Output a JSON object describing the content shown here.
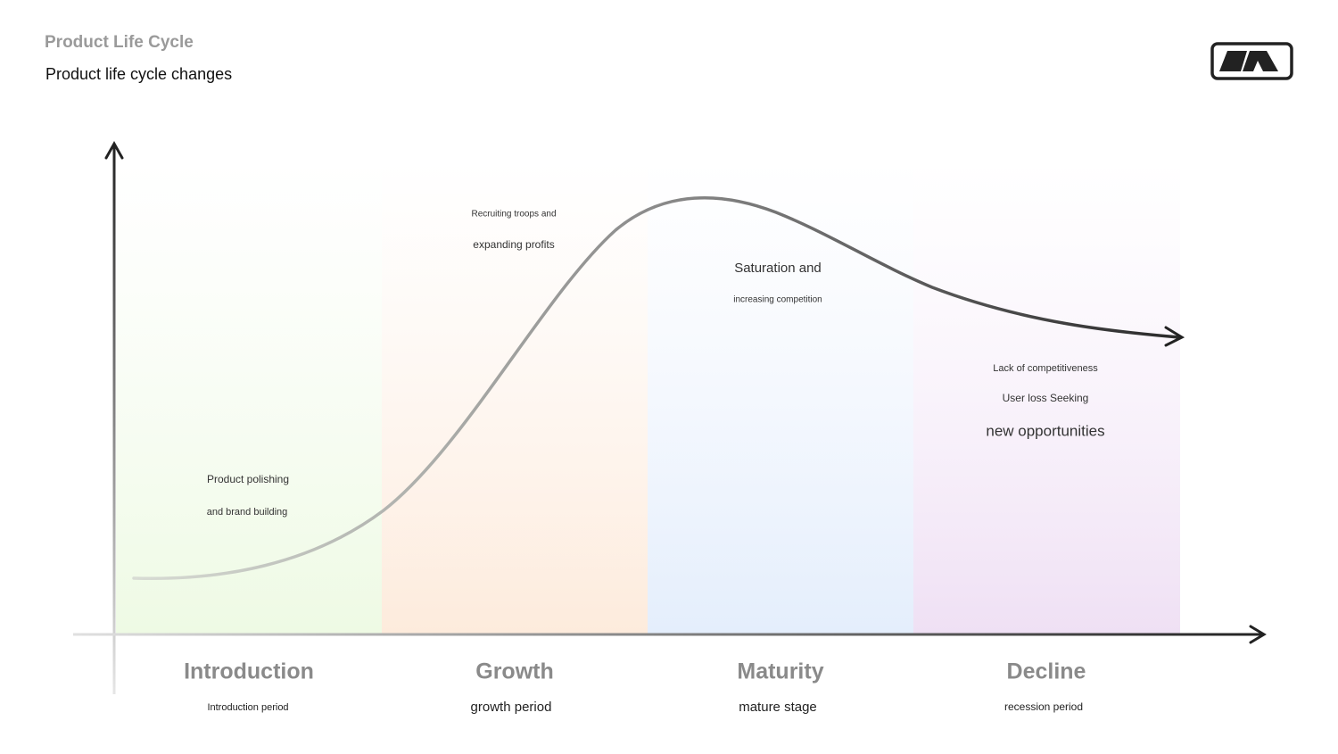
{
  "header": {
    "title": "Product Life Cycle",
    "subtitle": "Product life cycle changes"
  },
  "stages": [
    {
      "name": "Introduction",
      "period": "Introduction period",
      "notes": [
        "Product polishing",
        "and brand building"
      ]
    },
    {
      "name": "Growth",
      "period": "growth period",
      "notes": [
        "Recruiting troops and",
        "expanding profits"
      ]
    },
    {
      "name": "Maturity",
      "period": "mature stage",
      "notes": [
        "Saturation and",
        "increasing competition"
      ]
    },
    {
      "name": "Decline",
      "period": "recession period",
      "notes": [
        "Lack of competitiveness",
        "User loss Seeking",
        "new opportunities"
      ]
    }
  ]
}
